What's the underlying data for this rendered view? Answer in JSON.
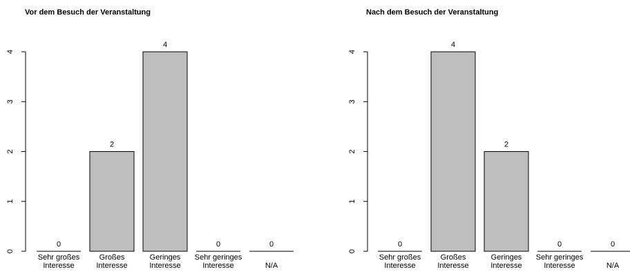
{
  "chart_data": [
    {
      "type": "bar",
      "title": "Vor dem Besuch der Veranstaltung",
      "categories": [
        [
          "Sehr großes",
          "Interesse"
        ],
        [
          "Großes",
          "Interesse"
        ],
        [
          "Geringes",
          "Interesse"
        ],
        [
          "Sehr geringes",
          "Interesse"
        ],
        [
          "N/A"
        ]
      ],
      "values": [
        0,
        2,
        4,
        0,
        0
      ],
      "value_labels": [
        "0",
        "2",
        "4",
        "0",
        "0"
      ],
      "yticks": [
        0,
        1,
        2,
        3,
        4
      ],
      "ylim": [
        0,
        4
      ],
      "xlabel": "",
      "ylabel": "",
      "bar_color": "#bebebe",
      "grid": false
    },
    {
      "type": "bar",
      "title": "Nach dem Besuch der Veranstaltung",
      "categories": [
        [
          "Sehr großes",
          "Interesse"
        ],
        [
          "Großes",
          "Interesse"
        ],
        [
          "Geringes",
          "Interesse"
        ],
        [
          "Sehr geringes",
          "Interesse"
        ],
        [
          "N/A"
        ]
      ],
      "values": [
        0,
        4,
        2,
        0,
        0
      ],
      "value_labels": [
        "0",
        "4",
        "2",
        "0",
        "0"
      ],
      "yticks": [
        0,
        1,
        2,
        3,
        4
      ],
      "ylim": [
        0,
        4
      ],
      "xlabel": "",
      "ylabel": "",
      "bar_color": "#bebebe",
      "grid": false
    }
  ]
}
